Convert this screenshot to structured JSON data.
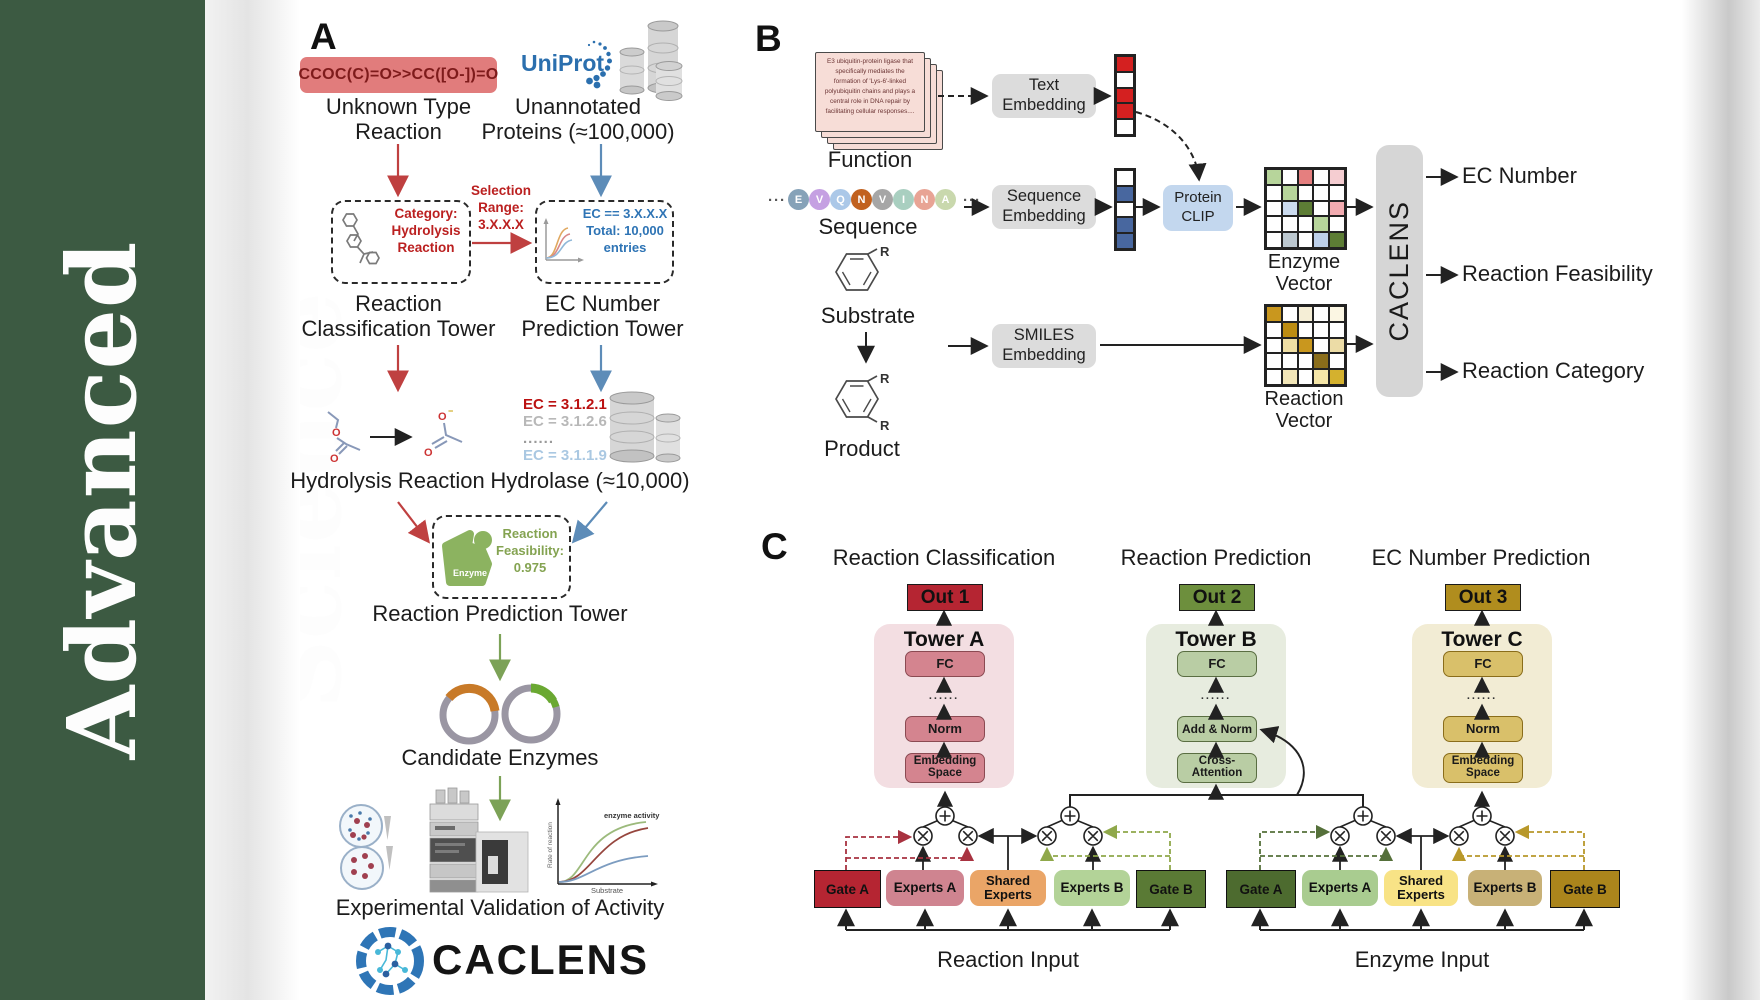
{
  "journal": {
    "title": "Advanced Science"
  },
  "colors": {
    "sidebar_green": "#3c5a42",
    "smiles_red": "#e17c7c",
    "arrow_red": "#bf4040",
    "arrow_blue": "#5d8cb8",
    "arrow_green": "#7ca257",
    "out1_red": "#b52532",
    "out2_green": "#6d8f3d",
    "out3_gold": "#b08d1e"
  },
  "panelA": {
    "label": "A",
    "smiles": "CCOC(C)=O>>CC([O-])=O",
    "unknown_reaction": "Unknown Type\nReaction",
    "uniprot": "UniProt",
    "unannotated": "Unannotated\nProteins (≈100,000)",
    "category": "Category:\nHydrolysis\nReaction",
    "selection": "Selection\nRange:\n3.X.X.X",
    "ec_range": "EC == 3.X.X.X\nTotal: 10,000\nentries",
    "classification_tower": "Reaction\nClassification Tower",
    "ec_tower": "EC Number\nPrediction Tower",
    "hydrolysis": "Hydrolysis Reaction",
    "ec_list": [
      "EC = 3.1.2.1",
      "EC = 3.1.2.6",
      "......",
      "EC = 3.1.1.9"
    ],
    "hydrolase": "Hydrolase (≈10,000)",
    "enzyme": "Enzyme",
    "feasibility": "Reaction\nFeasibility:\n0.975",
    "prediction_tower": "Reaction Prediction Tower",
    "candidates": "Candidate Enzymes",
    "activity_plot": {
      "ylabel": "Rate of reaction",
      "xlabel": "Substrate",
      "annotation": "enzyme activity"
    },
    "validation": "Experimental Validation of Activity",
    "logo": "CACLENS"
  },
  "panelB": {
    "label": "B",
    "function_card": "E3 ubiquitin-protein ligase that specifically mediates the formation of 'Lys-6'-linked polyubiquitin chains and plays a central role in DNA repair by facilitating cellular responses....",
    "function": "Function",
    "ellipsis": "···",
    "sequence_letters": [
      "E",
      "V",
      "Q",
      "N",
      "V",
      "I",
      "N",
      "A"
    ],
    "sequence_colors": [
      "#86a2b8",
      "#c5a0e2",
      "#abc8e8",
      "#c1611f",
      "#a6a6a6",
      "#a9cfc0",
      "#e8a495",
      "#c9d8ad"
    ],
    "sequence": "Sequence",
    "substrate": "Substrate",
    "product": "Product",
    "r": "R",
    "text_embedding": "Text\nEmbedding",
    "sequence_embedding": "Sequence\nEmbedding",
    "smiles_embedding": "SMILES\nEmbedding",
    "protein_clip": "Protein\nCLIP",
    "text_vector": [
      "#d42020",
      "#ffffff",
      "#d42020",
      "#d42020",
      "#ffffff"
    ],
    "sequence_vector": [
      "#ffffff",
      "#48679f",
      "#ffffff",
      "#48679f",
      "#48679f"
    ],
    "enzyme_matrix": [
      [
        "#b7d59b",
        "#ffffff",
        "#e57f7f",
        "#ffffff",
        "#f5cdd1"
      ],
      [
        "#ffffff",
        "#b7d59b",
        "#ffffff",
        "#ffffff",
        "#ffffff"
      ],
      [
        "#ffffff",
        "#ccdcf0",
        "#5d7d35",
        "#ffffff",
        "#f2abb0"
      ],
      [
        "#ffffff",
        "#ffffff",
        "#ffffff",
        "#b7d59b",
        "#ffffff"
      ],
      [
        "#ffffff",
        "#bcc8d0",
        "#ffffff",
        "#bdd0ea",
        "#5d7d35"
      ]
    ],
    "reaction_matrix": [
      [
        "#c9971e",
        "#ffffff",
        "#f5eed6",
        "#ffffff",
        "#fbf6e3"
      ],
      [
        "#ffffff",
        "#bd8d12",
        "#ffffff",
        "#ffffff",
        "#ffffff"
      ],
      [
        "#ffffff",
        "#f0dfa4",
        "#c9971e",
        "#ffffff",
        "#ecdca6"
      ],
      [
        "#ffffff",
        "#ffffff",
        "#ffffff",
        "#8a6d1a",
        "#ffffff"
      ],
      [
        "#ffffff",
        "#f2e6b8",
        "#ffffff",
        "#f5e6a8",
        "#d4b12e"
      ]
    ],
    "enzyme_vector_label": "Enzyme Vector",
    "reaction_vector_label": "Reaction Vector",
    "caclens": "CACLENS",
    "outputs": [
      "EC Number",
      "Reaction Feasibility",
      "Reaction Category"
    ]
  },
  "panelC": {
    "label": "C",
    "columns": [
      {
        "title": "Reaction Classification",
        "out": "Out 1",
        "tower": "Tower A",
        "fc": "FC",
        "dots": "......",
        "mid": "Norm",
        "bottom": "Embedding\nSpace"
      },
      {
        "title": "Reaction Prediction",
        "out": "Out 2",
        "tower": "Tower B",
        "fc": "FC",
        "dots": "......",
        "mid": "Add & Norm",
        "bottom": "Cross-\nAttention"
      },
      {
        "title": "EC Number Prediction",
        "out": "Out 3",
        "tower": "Tower C",
        "fc": "FC",
        "dots": "......",
        "mid": "Norm",
        "bottom": "Embedding\nSpace"
      }
    ],
    "groups": [
      {
        "gate_a": "Gate A",
        "experts_a": "Experts A",
        "shared": "Shared\nExperts",
        "experts_b": "Experts B",
        "gate_b": "Gate B",
        "input": "Reaction Input"
      },
      {
        "gate_a": "Gate A",
        "experts_a": "Experts A",
        "shared": "Shared\nExperts",
        "experts_b": "Experts B",
        "gate_b": "Gate B",
        "input": "Enzyme Input"
      }
    ]
  }
}
